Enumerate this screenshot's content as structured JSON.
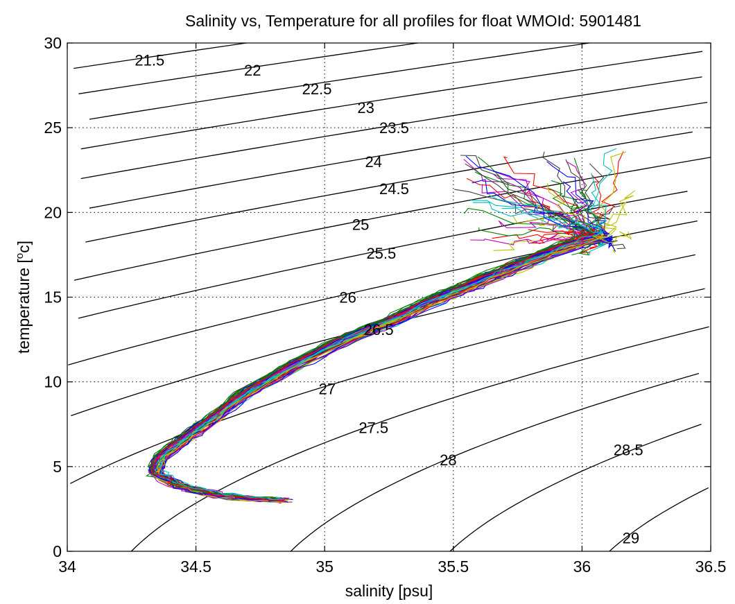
{
  "chart_data": {
    "type": "line",
    "title": "Salinity vs, Temperature for all profiles for float WMOId: 5901481",
    "xlabel": "salinity [psu]",
    "ylabel_main": "temperature [",
    "ylabel_super": "o",
    "ylabel_tail": "c]",
    "xlim": [
      34,
      36.5
    ],
    "ylim": [
      0,
      30
    ],
    "xticks": [
      34,
      34.5,
      35,
      35.5,
      36,
      36.5
    ],
    "xtick_labels": [
      "34",
      "34.5",
      "35",
      "35.5",
      "36",
      "36.5"
    ],
    "yticks": [
      0,
      5,
      10,
      15,
      20,
      25,
      30
    ],
    "ytick_labels": [
      "0",
      "5",
      "10",
      "15",
      "20",
      "25",
      "30"
    ],
    "grid": true,
    "density_contours": {
      "levels": [
        21.5,
        22,
        22.5,
        23,
        23.5,
        24,
        24.5,
        25,
        25.5,
        26,
        26.5,
        27,
        27.5,
        28,
        28.5,
        29
      ],
      "labels": [
        "21.5",
        "22",
        "22.5",
        "23",
        "23.5",
        "24",
        "24.5",
        "25",
        "25.5",
        "26",
        "26.5",
        "27",
        "27.5",
        "28",
        "28.5",
        "29"
      ],
      "label_positions": [
        {
          "s": 34.32,
          "t": 29.0
        },
        {
          "s": 34.72,
          "t": 28.4
        },
        {
          "s": 34.97,
          "t": 27.3
        },
        {
          "s": 35.16,
          "t": 26.2
        },
        {
          "s": 35.27,
          "t": 25.0
        },
        {
          "s": 35.19,
          "t": 23.0
        },
        {
          "s": 35.27,
          "t": 21.4
        },
        {
          "s": 35.14,
          "t": 19.3
        },
        {
          "s": 35.22,
          "t": 17.6
        },
        {
          "s": 35.09,
          "t": 15.0
        },
        {
          "s": 35.21,
          "t": 13.1
        },
        {
          "s": 35.01,
          "t": 9.6
        },
        {
          "s": 35.19,
          "t": 7.3
        },
        {
          "s": 35.48,
          "t": 5.4
        },
        {
          "s": 36.18,
          "t": 6.0
        },
        {
          "s": 36.19,
          "t": 0.8
        }
      ]
    },
    "series_colors": [
      "#0000ff",
      "#008000",
      "#ff0000",
      "#00bfbf",
      "#bf00bf",
      "#bfbf00",
      "#404040"
    ],
    "profile_count": 60,
    "mean_profile": [
      {
        "s": 34.84,
        "t": 3.0
      },
      {
        "s": 34.72,
        "t": 3.1
      },
      {
        "s": 34.58,
        "t": 3.3
      },
      {
        "s": 34.45,
        "t": 3.8
      },
      {
        "s": 34.34,
        "t": 4.6
      },
      {
        "s": 34.36,
        "t": 5.5
      },
      {
        "s": 34.45,
        "t": 6.6
      },
      {
        "s": 34.56,
        "t": 7.8
      },
      {
        "s": 34.68,
        "t": 9.2
      },
      {
        "s": 34.86,
        "t": 10.8
      },
      {
        "s": 35.05,
        "t": 12.3
      },
      {
        "s": 35.26,
        "t": 13.6
      },
      {
        "s": 35.42,
        "t": 14.8
      },
      {
        "s": 35.58,
        "t": 15.8
      },
      {
        "s": 35.74,
        "t": 16.8
      },
      {
        "s": 35.92,
        "t": 17.9
      },
      {
        "s": 36.06,
        "t": 18.6
      }
    ]
  }
}
